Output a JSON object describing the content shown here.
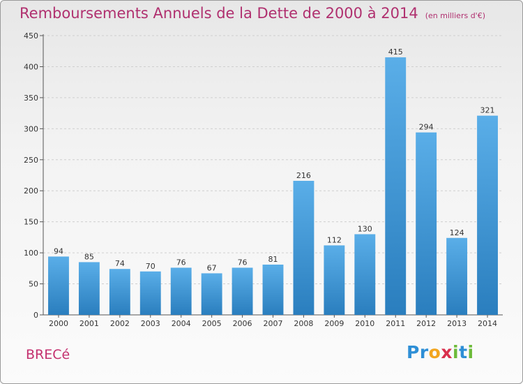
{
  "title": "Remboursements Annuels de la Dette de 2000 à 2014",
  "subtitle": "(en milliers d'€)",
  "commune": "BRECé",
  "logo": {
    "text": "Proxiti",
    "letters": [
      {
        "ch": "P",
        "color": "#2e8fd6"
      },
      {
        "ch": "r",
        "color": "#2e8fd6"
      },
      {
        "ch": "o",
        "color": "#f2a51e"
      },
      {
        "ch": "x",
        "color": "#d9304d"
      },
      {
        "ch": "i",
        "color": "#6dbb3a"
      },
      {
        "ch": "t",
        "color": "#2e8fd6"
      },
      {
        "ch": "i",
        "color": "#6dbb3a"
      }
    ]
  },
  "colors": {
    "title": "#b0306f",
    "bar_top": "#5aaee8",
    "bar_bottom": "#2a7ebe"
  },
  "chart_data": {
    "type": "bar",
    "title": "Remboursements Annuels de la Dette de 2000 à 2014",
    "subtitle": "(en milliers d'€)",
    "categories": [
      "2000",
      "2001",
      "2002",
      "2003",
      "2004",
      "2005",
      "2006",
      "2007",
      "2008",
      "2009",
      "2010",
      "2011",
      "2012",
      "2013",
      "2014"
    ],
    "values": [
      94,
      85,
      74,
      70,
      76,
      67,
      76,
      81,
      216,
      112,
      130,
      415,
      294,
      124,
      321
    ],
    "ylim": [
      0,
      450
    ],
    "yticks": [
      0,
      50,
      100,
      150,
      200,
      250,
      300,
      350,
      400,
      450
    ],
    "grid": true,
    "data_labels": true
  }
}
